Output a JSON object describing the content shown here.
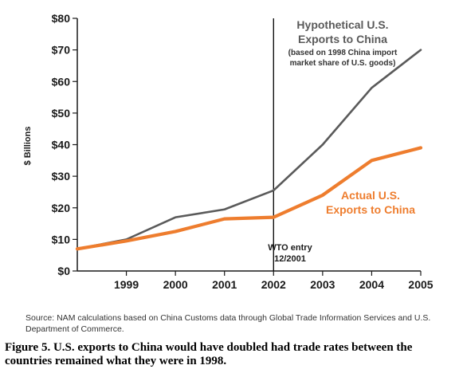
{
  "chart_data": {
    "type": "line",
    "x": [
      1998,
      1999,
      2000,
      2001,
      2002,
      2003,
      2004,
      2005
    ],
    "xticks": [
      "1999",
      "2000",
      "2001",
      "2002",
      "2003",
      "2004",
      "2005"
    ],
    "yticks": [
      "$0",
      "$10",
      "$20",
      "$30",
      "$40",
      "$50",
      "$60",
      "$70",
      "$80"
    ],
    "ylim": [
      0,
      80
    ],
    "ylabel": "$ Billions",
    "series": [
      {
        "name": "Hypothetical U.S. Exports to China",
        "color": "#5a5a5a",
        "values": [
          7,
          10,
          17,
          19.5,
          25.5,
          40,
          58,
          70
        ]
      },
      {
        "name": "Actual U.S. Exports to China",
        "color": "#ee7d2e",
        "values": [
          7,
          9.5,
          12.5,
          16.5,
          17,
          24,
          35,
          39
        ]
      }
    ],
    "annotations": {
      "hyp_line1": "Hypothetical U.S.",
      "hyp_line2": "Exports to China",
      "hyp_note1": "(based on 1998 China import",
      "hyp_note2": "market share of U.S. goods)",
      "act_line1": "Actual U.S.",
      "act_line2": "Exports to China",
      "wto_line1": "WTO entry",
      "wto_line2": "12/2001"
    },
    "wto_x": 2002
  },
  "source_text": "Source: NAM calculations based on China Customs data through Global Trade Information Services and U.S. Department of Commerce.",
  "caption": "Figure 5. U.S. exports to China would have doubled had trade rates between the countries remained what they were in 1998."
}
